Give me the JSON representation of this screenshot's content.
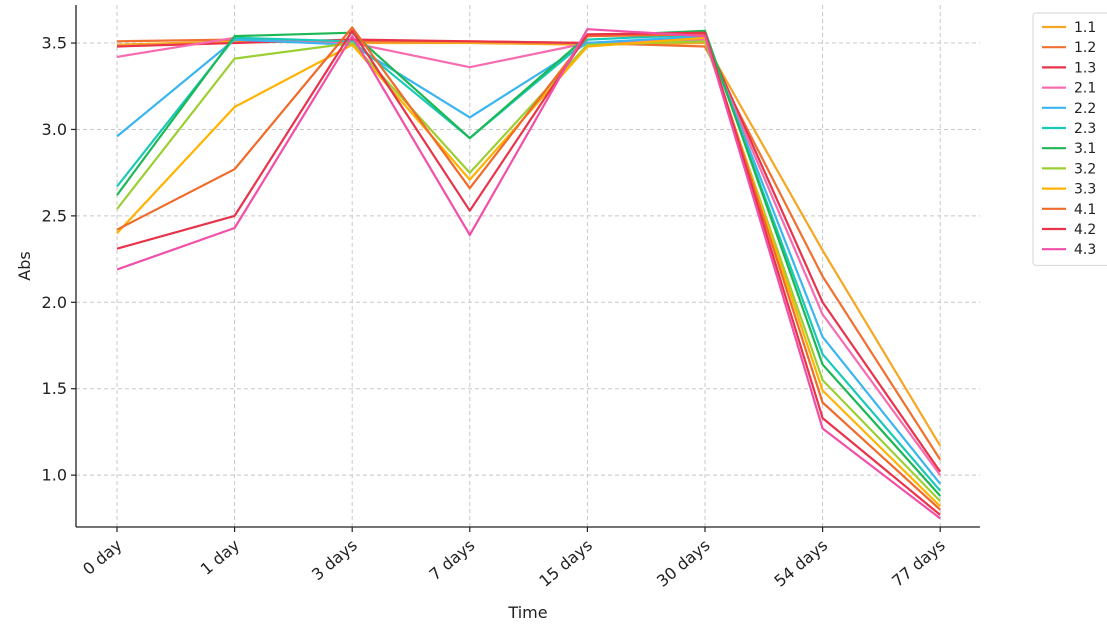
{
  "chart_data": {
    "type": "line",
    "title": "",
    "xlabel": "Time",
    "ylabel": "Abs",
    "categories": [
      "0 day",
      "1 day",
      "3 days",
      "7 days",
      "15 days",
      "30 days",
      "54 days",
      "77 days"
    ],
    "ylim": [
      0.7,
      3.72
    ],
    "yticks": [
      "1.0",
      "1.5",
      "2.0",
      "2.5",
      "3.0",
      "3.5"
    ],
    "grid": true,
    "legend_position": "outside-top-right",
    "series": [
      {
        "name": "1.1",
        "color": "#f5a623",
        "values": [
          3.49,
          3.51,
          3.5,
          3.5,
          3.49,
          3.5,
          2.3,
          1.17
        ]
      },
      {
        "name": "1.2",
        "color": "#f07030",
        "values": [
          3.51,
          3.52,
          3.51,
          3.51,
          3.5,
          3.48,
          2.15,
          1.09
        ]
      },
      {
        "name": "1.3",
        "color": "#e8334a",
        "values": [
          3.48,
          3.5,
          3.52,
          3.51,
          3.5,
          3.53,
          2.0,
          1.02
        ]
      },
      {
        "name": "2.1",
        "color": "#f76bb1",
        "values": [
          3.42,
          3.53,
          3.5,
          3.36,
          3.5,
          3.52,
          1.93,
          1.0
        ]
      },
      {
        "name": "2.2",
        "color": "#3ab5f0",
        "values": [
          2.96,
          3.52,
          3.49,
          3.07,
          3.5,
          3.54,
          1.8,
          0.95
        ]
      },
      {
        "name": "2.3",
        "color": "#19c9b8",
        "values": [
          2.67,
          3.53,
          3.51,
          2.95,
          3.52,
          3.55,
          1.7,
          0.91
        ]
      },
      {
        "name": "3.1",
        "color": "#1db855",
        "values": [
          2.62,
          3.54,
          3.56,
          2.95,
          3.54,
          3.57,
          1.64,
          0.88
        ]
      },
      {
        "name": "3.2",
        "color": "#9ccf34",
        "values": [
          2.54,
          3.41,
          3.5,
          2.75,
          3.49,
          3.51,
          1.55,
          0.85
        ]
      },
      {
        "name": "3.3",
        "color": "#ffb300",
        "values": [
          2.4,
          3.13,
          3.49,
          2.71,
          3.48,
          3.53,
          1.49,
          0.82
        ]
      },
      {
        "name": "4.1",
        "color": "#f06a2a",
        "values": [
          2.42,
          2.77,
          3.59,
          2.66,
          3.54,
          3.55,
          1.42,
          0.8
        ]
      },
      {
        "name": "4.2",
        "color": "#e8334a",
        "values": [
          2.31,
          2.5,
          3.57,
          2.53,
          3.55,
          3.56,
          1.33,
          0.77
        ]
      },
      {
        "name": "4.3",
        "color": "#f24fa8",
        "values": [
          2.19,
          2.43,
          3.54,
          2.39,
          3.58,
          3.54,
          1.27,
          0.75
        ]
      }
    ]
  }
}
